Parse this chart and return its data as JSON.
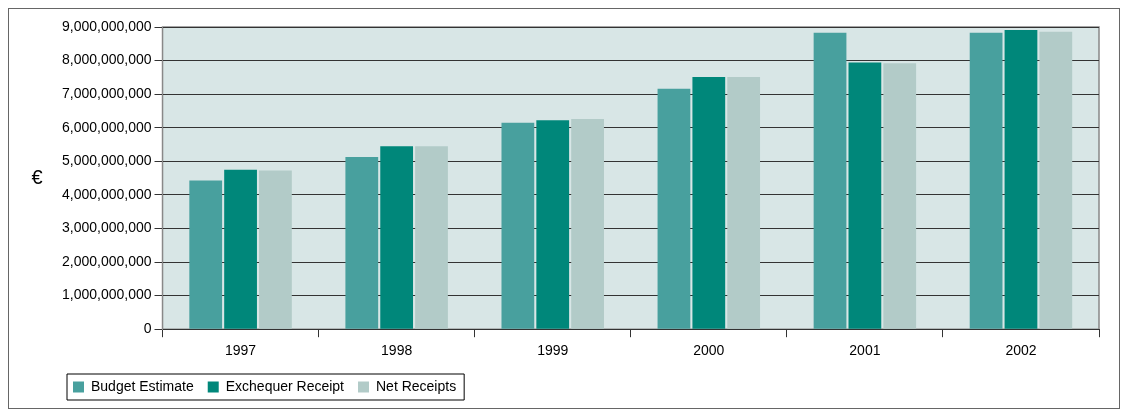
{
  "chart_data": {
    "type": "bar",
    "ylabel": "€",
    "categories": [
      "1997",
      "1998",
      "1999",
      "2000",
      "2001",
      "2002"
    ],
    "series": [
      {
        "name": "Budget Estimate",
        "color": "#48a09e",
        "values": [
          4430000000,
          5130000000,
          6150000000,
          7160000000,
          8830000000,
          8830000000
        ]
      },
      {
        "name": "Exchequer Receipt",
        "color": "#00877a",
        "values": [
          4750000000,
          5450000000,
          6220000000,
          7510000000,
          7940000000,
          8910000000
        ]
      },
      {
        "name": "Net Receipts",
        "color": "#b2cbc8",
        "values": [
          4730000000,
          5450000000,
          6260000000,
          7510000000,
          7920000000,
          8860000000
        ]
      }
    ],
    "ylim": [
      0,
      9000000000
    ],
    "yticks": [
      0,
      {
        "value": 1000000000,
        "label": "1,000,000,000"
      },
      {
        "value": 2000000000,
        "label": "2,000,000,000"
      },
      {
        "value": 3000000000,
        "label": "3,000,000,000"
      },
      {
        "value": 4000000000,
        "label": "4,000,000,000"
      },
      {
        "value": 5000000000,
        "label": "5,000,000,000"
      },
      {
        "value": 6000000000,
        "label": "6,000,000,000"
      },
      {
        "value": 7000000000,
        "label": "7,000,000,000"
      },
      {
        "value": 8000000000,
        "label": "8,000,000,000"
      },
      {
        "value": 9000000000,
        "label": "9,000,000,000"
      }
    ],
    "grid": "y",
    "legend": "bottom left"
  }
}
